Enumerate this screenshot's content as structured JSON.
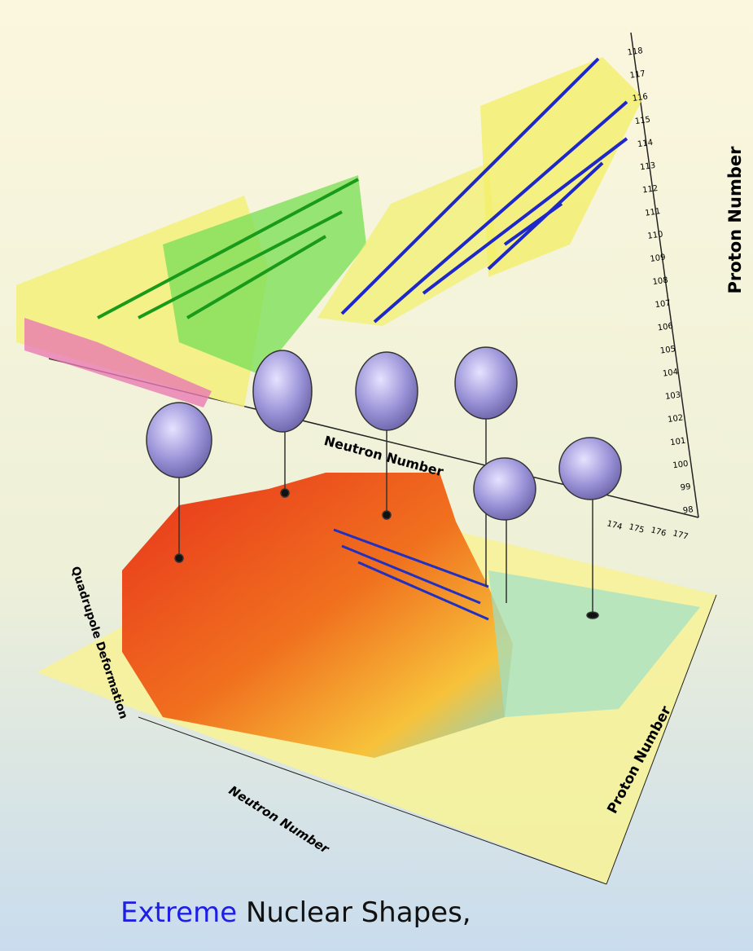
{
  "illustration": {
    "upper_plot": {
      "y_axis_label": "Proton Number",
      "x_axis_label": "Neutron Number",
      "y_ticks": [
        98,
        99,
        100,
        101,
        102,
        103,
        104,
        105,
        106,
        107,
        108,
        109,
        110,
        111,
        112,
        113,
        114,
        115,
        116,
        117,
        118
      ],
      "x_ticks": [
        174,
        175,
        176,
        177
      ]
    },
    "lower_plot": {
      "x_axis_label": "Neutron Number",
      "y_axis_label": "Proton Number",
      "z_axis_label": "Quadrupole Deformation"
    }
  },
  "caption": {
    "highlight": "Extreme",
    "text": "Nuclear Shapes,"
  }
}
